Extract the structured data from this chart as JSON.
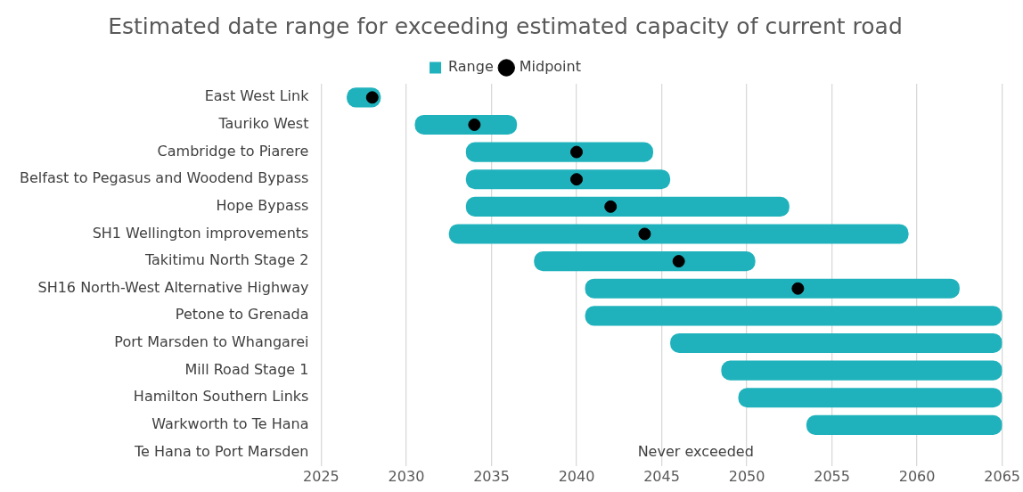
{
  "chart_data": {
    "type": "bar",
    "orientation": "horizontal",
    "title": "Estimated date range for exceeding estimated capacity of current road",
    "categories": [
      "East West Link",
      "Tauriko West",
      "Cambridge to Piarere",
      "Belfast to Pegasus and Woodend Bypass",
      "Hope Bypass",
      "SH1 Wellington improvements",
      "Takitimu North Stage 2",
      "SH16 North-West Alternative Highway",
      "Petone to Grenada",
      "Port Marsden to Whangarei",
      "Mill Road Stage 1",
      "Hamilton Southern Links",
      "Warkworth to Te Hana",
      "Te Hana to Port Marsden"
    ],
    "series": [
      {
        "name": "Range",
        "color": "#20b2bc",
        "base": [
          2026.5,
          2030.5,
          2033.5,
          2033.5,
          2033.5,
          2032.5,
          2037.5,
          2040.5,
          2040.5,
          2045.5,
          2048.5,
          2049.5,
          2053.5,
          null
        ],
        "values": [
          2,
          6,
          11,
          12,
          19,
          27,
          13,
          22,
          24.5,
          19.5,
          16.5,
          15.5,
          11.5,
          null
        ]
      },
      {
        "name": "Midpoint",
        "type": "scatter",
        "color": "#000000",
        "marker": "circle",
        "values": [
          2028,
          2034,
          2040,
          2040,
          2042,
          2044,
          2046,
          2053,
          null,
          null,
          null,
          null,
          null,
          null
        ]
      }
    ],
    "xlim": [
      2025,
      2065
    ],
    "xticks": [
      2025,
      2030,
      2035,
      2040,
      2045,
      2050,
      2055,
      2060,
      2065
    ],
    "grid": "x",
    "legend": "top",
    "annotations": [
      "Never exceeded"
    ]
  }
}
